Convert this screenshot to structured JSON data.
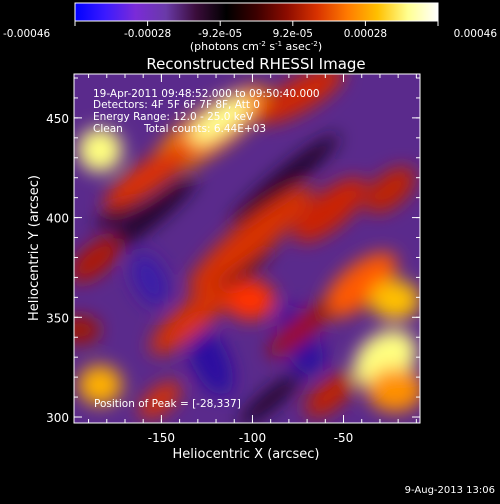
{
  "colorbar": {
    "ticks": [
      "-0.00046",
      "-0.00028",
      "-9.2e-05",
      "9.2e-05",
      "0.00028",
      "0.00046"
    ],
    "unit_prefix": "(photons cm",
    "unit_exp1": "-2",
    "unit_mid": " s",
    "unit_exp2": "-1",
    "unit_mid2": " asec",
    "unit_exp3": "-2",
    "unit_suffix": ")",
    "colors": [
      "#0000ff",
      "#3b1aff",
      "#7a2bd8",
      "#6a3aa8",
      "#3a0c3a",
      "#000000",
      "#3c0000",
      "#8c0c00",
      "#d83200",
      "#ff7a00",
      "#ffc000",
      "#ffff90",
      "#ffffff"
    ]
  },
  "chart_data": {
    "type": "heatmap",
    "title": "Reconstructed RHESSI Image",
    "xlabel": "Heliocentric X (arcsec)",
    "ylabel": "Heliocentric Y (arcsec)",
    "x_ticks": [
      -150,
      -100,
      -50
    ],
    "y_ticks": [
      300,
      350,
      400,
      450
    ],
    "xlim": [
      -198,
      -8
    ],
    "ylim": [
      297,
      472
    ],
    "value_range": [
      -0.00046,
      0.00046
    ],
    "peak": [
      -28,
      337
    ],
    "annotations": {
      "time": "19-Apr-2011 09:48:52.000 to 09:50:40.000",
      "detectors": "Detectors: 4F 5F 6F 7F 8F, Att 0",
      "energy": "Energy Range: 12.0 - 25.0 keV",
      "clean": "Clean",
      "counts": "Total counts: 6.44E+03",
      "peak_label": "Position of Peak = [-28,337]"
    }
  },
  "footer": {
    "date": "9-Aug-2013 13:06"
  }
}
